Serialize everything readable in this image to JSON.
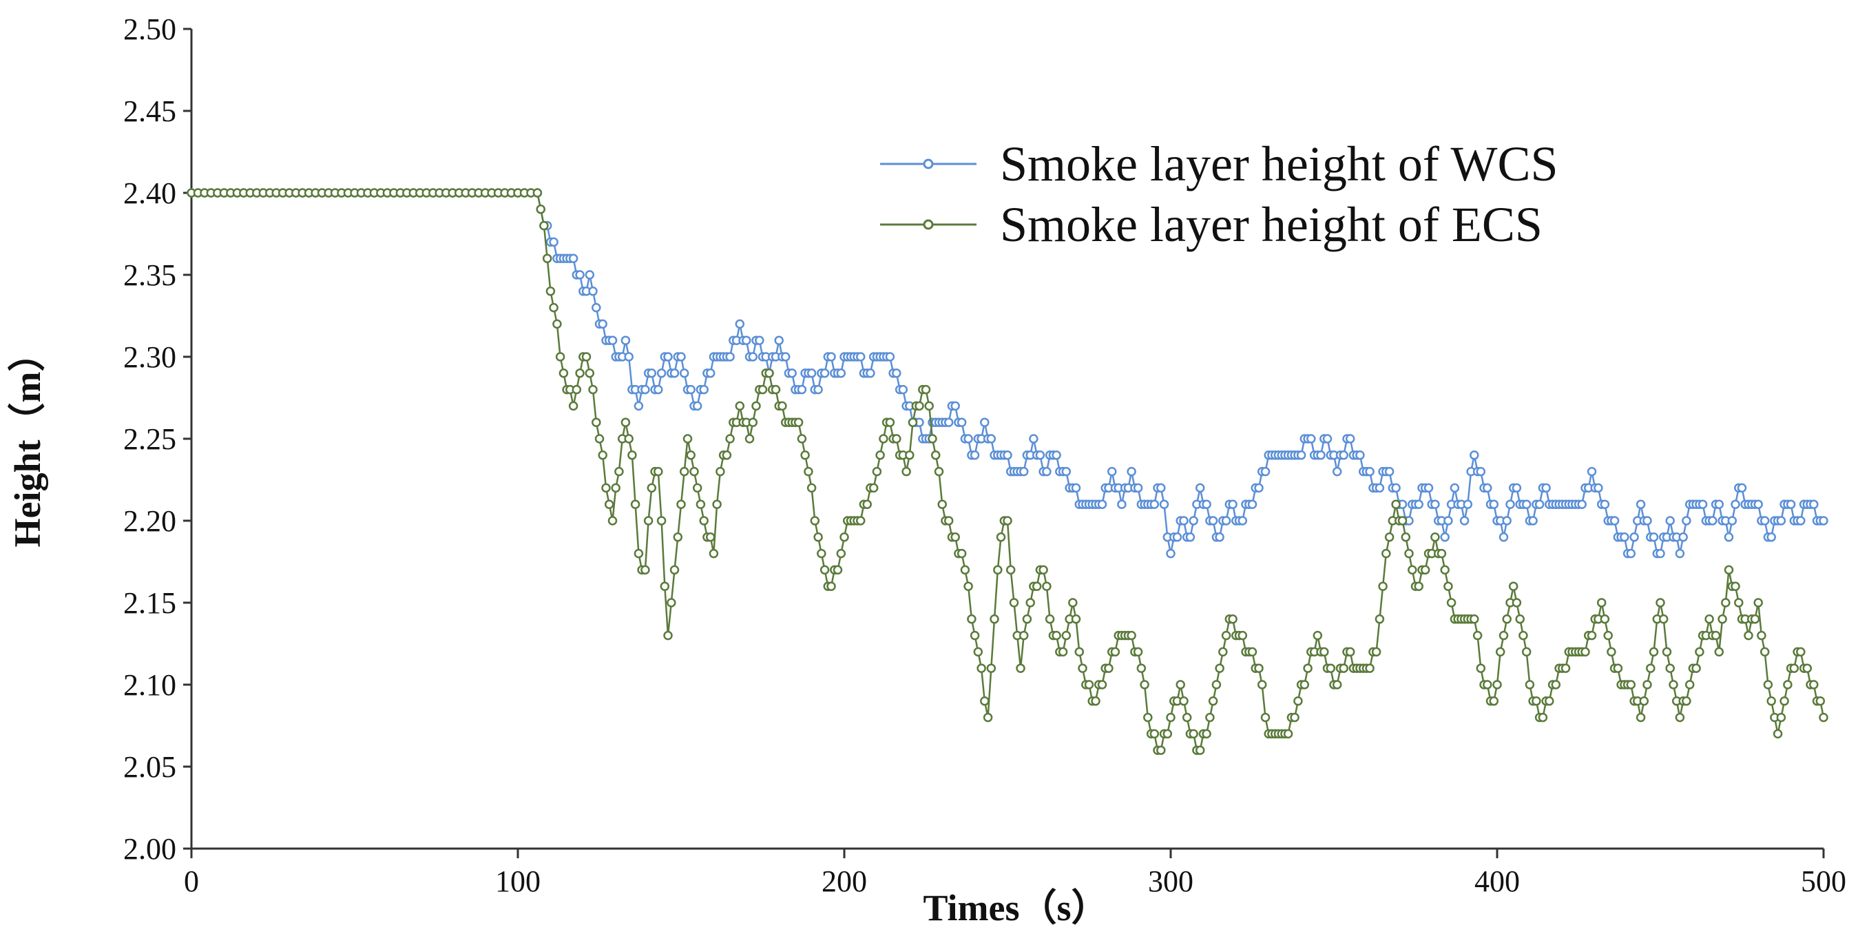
{
  "chart_data": {
    "type": "line",
    "title": "",
    "xlabel": "Times（s）",
    "ylabel": "Height（m）",
    "xlim": [
      0,
      500
    ],
    "ylim": [
      2.0,
      2.5
    ],
    "x_ticks": [
      "0",
      "100",
      "200",
      "300",
      "400",
      "500"
    ],
    "y_ticks": [
      "2.00",
      "2.05",
      "2.10",
      "2.15",
      "2.20",
      "2.25",
      "2.30",
      "2.35",
      "2.40",
      "2.45",
      "2.50"
    ],
    "grid": false,
    "legend_position": "top-right",
    "series": [
      {
        "name": "Smoke layer height of WCS",
        "color": "#5b8fd6",
        "marker": "circle",
        "points": [
          [
            0,
            2.4
          ],
          [
            105,
            2.4
          ],
          [
            107,
            2.39
          ],
          [
            110,
            2.37
          ],
          [
            113,
            2.36
          ],
          [
            117,
            2.36
          ],
          [
            120,
            2.34
          ],
          [
            122,
            2.35
          ],
          [
            125,
            2.32
          ],
          [
            128,
            2.31
          ],
          [
            131,
            2.3
          ],
          [
            133,
            2.31
          ],
          [
            135,
            2.28
          ],
          [
            137,
            2.27
          ],
          [
            140,
            2.29
          ],
          [
            143,
            2.28
          ],
          [
            145,
            2.3
          ],
          [
            148,
            2.29
          ],
          [
            150,
            2.3
          ],
          [
            152,
            2.28
          ],
          [
            155,
            2.27
          ],
          [
            158,
            2.29
          ],
          [
            161,
            2.3
          ],
          [
            165,
            2.3
          ],
          [
            168,
            2.32
          ],
          [
            171,
            2.3
          ],
          [
            174,
            2.31
          ],
          [
            177,
            2.29
          ],
          [
            180,
            2.31
          ],
          [
            183,
            2.29
          ],
          [
            186,
            2.28
          ],
          [
            189,
            2.29
          ],
          [
            192,
            2.28
          ],
          [
            195,
            2.3
          ],
          [
            198,
            2.29
          ],
          [
            201,
            2.3
          ],
          [
            204,
            2.3
          ],
          [
            207,
            2.29
          ],
          [
            210,
            2.3
          ],
          [
            213,
            2.3
          ],
          [
            216,
            2.29
          ],
          [
            219,
            2.27
          ],
          [
            222,
            2.26
          ],
          [
            225,
            2.25
          ],
          [
            228,
            2.26
          ],
          [
            231,
            2.26
          ],
          [
            234,
            2.27
          ],
          [
            237,
            2.25
          ],
          [
            240,
            2.24
          ],
          [
            243,
            2.26
          ],
          [
            246,
            2.24
          ],
          [
            249,
            2.24
          ],
          [
            252,
            2.23
          ],
          [
            255,
            2.23
          ],
          [
            258,
            2.25
          ],
          [
            261,
            2.23
          ],
          [
            264,
            2.24
          ],
          [
            267,
            2.23
          ],
          [
            270,
            2.22
          ],
          [
            273,
            2.21
          ],
          [
            276,
            2.21
          ],
          [
            279,
            2.21
          ],
          [
            282,
            2.23
          ],
          [
            285,
            2.21
          ],
          [
            288,
            2.23
          ],
          [
            291,
            2.21
          ],
          [
            294,
            2.21
          ],
          [
            297,
            2.22
          ],
          [
            300,
            2.18
          ],
          [
            303,
            2.2
          ],
          [
            306,
            2.19
          ],
          [
            309,
            2.22
          ],
          [
            312,
            2.2
          ],
          [
            315,
            2.19
          ],
          [
            318,
            2.21
          ],
          [
            321,
            2.2
          ],
          [
            324,
            2.21
          ],
          [
            327,
            2.22
          ],
          [
            330,
            2.24
          ],
          [
            333,
            2.24
          ],
          [
            336,
            2.24
          ],
          [
            339,
            2.24
          ],
          [
            342,
            2.25
          ],
          [
            345,
            2.24
          ],
          [
            348,
            2.25
          ],
          [
            351,
            2.23
          ],
          [
            354,
            2.25
          ],
          [
            357,
            2.24
          ],
          [
            360,
            2.23
          ],
          [
            363,
            2.22
          ],
          [
            366,
            2.23
          ],
          [
            369,
            2.22
          ],
          [
            372,
            2.2
          ],
          [
            375,
            2.21
          ],
          [
            378,
            2.22
          ],
          [
            381,
            2.21
          ],
          [
            384,
            2.19
          ],
          [
            387,
            2.22
          ],
          [
            390,
            2.2
          ],
          [
            393,
            2.24
          ],
          [
            396,
            2.22
          ],
          [
            399,
            2.21
          ],
          [
            402,
            2.19
          ],
          [
            405,
            2.22
          ],
          [
            408,
            2.21
          ],
          [
            411,
            2.2
          ],
          [
            414,
            2.22
          ],
          [
            417,
            2.21
          ],
          [
            420,
            2.21
          ],
          [
            423,
            2.21
          ],
          [
            426,
            2.21
          ],
          [
            429,
            2.23
          ],
          [
            432,
            2.21
          ],
          [
            435,
            2.2
          ],
          [
            438,
            2.19
          ],
          [
            441,
            2.18
          ],
          [
            444,
            2.21
          ],
          [
            447,
            2.19
          ],
          [
            450,
            2.18
          ],
          [
            453,
            2.2
          ],
          [
            456,
            2.18
          ],
          [
            459,
            2.21
          ],
          [
            462,
            2.21
          ],
          [
            465,
            2.2
          ],
          [
            468,
            2.21
          ],
          [
            471,
            2.19
          ],
          [
            474,
            2.22
          ],
          [
            477,
            2.21
          ],
          [
            480,
            2.21
          ],
          [
            483,
            2.19
          ],
          [
            486,
            2.2
          ],
          [
            489,
            2.21
          ],
          [
            492,
            2.2
          ],
          [
            495,
            2.21
          ],
          [
            500,
            2.2
          ]
        ]
      },
      {
        "name": "Smoke layer height of ECS",
        "color": "#5a7a3a",
        "marker": "circle",
        "points": [
          [
            0,
            2.4
          ],
          [
            105,
            2.4
          ],
          [
            107,
            2.39
          ],
          [
            109,
            2.36
          ],
          [
            111,
            2.33
          ],
          [
            113,
            2.3
          ],
          [
            115,
            2.28
          ],
          [
            117,
            2.27
          ],
          [
            119,
            2.29
          ],
          [
            121,
            2.3
          ],
          [
            123,
            2.28
          ],
          [
            125,
            2.25
          ],
          [
            127,
            2.22
          ],
          [
            129,
            2.2
          ],
          [
            131,
            2.23
          ],
          [
            133,
            2.26
          ],
          [
            135,
            2.24
          ],
          [
            137,
            2.18
          ],
          [
            139,
            2.17
          ],
          [
            141,
            2.22
          ],
          [
            143,
            2.23
          ],
          [
            145,
            2.16
          ],
          [
            146,
            2.13
          ],
          [
            148,
            2.17
          ],
          [
            150,
            2.21
          ],
          [
            152,
            2.25
          ],
          [
            154,
            2.23
          ],
          [
            156,
            2.21
          ],
          [
            158,
            2.19
          ],
          [
            160,
            2.18
          ],
          [
            162,
            2.23
          ],
          [
            165,
            2.25
          ],
          [
            168,
            2.27
          ],
          [
            171,
            2.25
          ],
          [
            174,
            2.28
          ],
          [
            177,
            2.29
          ],
          [
            180,
            2.27
          ],
          [
            183,
            2.26
          ],
          [
            186,
            2.26
          ],
          [
            189,
            2.23
          ],
          [
            192,
            2.19
          ],
          [
            195,
            2.16
          ],
          [
            198,
            2.17
          ],
          [
            201,
            2.2
          ],
          [
            204,
            2.2
          ],
          [
            207,
            2.21
          ],
          [
            210,
            2.23
          ],
          [
            213,
            2.26
          ],
          [
            216,
            2.25
          ],
          [
            219,
            2.23
          ],
          [
            222,
            2.27
          ],
          [
            225,
            2.28
          ],
          [
            228,
            2.24
          ],
          [
            231,
            2.2
          ],
          [
            234,
            2.19
          ],
          [
            237,
            2.17
          ],
          [
            240,
            2.13
          ],
          [
            242,
            2.11
          ],
          [
            244,
            2.08
          ],
          [
            246,
            2.14
          ],
          [
            248,
            2.19
          ],
          [
            250,
            2.2
          ],
          [
            252,
            2.15
          ],
          [
            254,
            2.11
          ],
          [
            256,
            2.14
          ],
          [
            258,
            2.16
          ],
          [
            261,
            2.17
          ],
          [
            264,
            2.13
          ],
          [
            267,
            2.12
          ],
          [
            270,
            2.15
          ],
          [
            273,
            2.11
          ],
          [
            276,
            2.09
          ],
          [
            279,
            2.1
          ],
          [
            282,
            2.12
          ],
          [
            285,
            2.13
          ],
          [
            288,
            2.13
          ],
          [
            291,
            2.11
          ],
          [
            294,
            2.07
          ],
          [
            297,
            2.06
          ],
          [
            300,
            2.08
          ],
          [
            303,
            2.1
          ],
          [
            306,
            2.07
          ],
          [
            309,
            2.06
          ],
          [
            312,
            2.08
          ],
          [
            315,
            2.11
          ],
          [
            318,
            2.14
          ],
          [
            321,
            2.13
          ],
          [
            324,
            2.12
          ],
          [
            327,
            2.11
          ],
          [
            330,
            2.07
          ],
          [
            333,
            2.07
          ],
          [
            336,
            2.07
          ],
          [
            339,
            2.09
          ],
          [
            342,
            2.11
          ],
          [
            345,
            2.13
          ],
          [
            348,
            2.11
          ],
          [
            351,
            2.1
          ],
          [
            354,
            2.12
          ],
          [
            357,
            2.11
          ],
          [
            360,
            2.11
          ],
          [
            363,
            2.12
          ],
          [
            366,
            2.18
          ],
          [
            369,
            2.21
          ],
          [
            372,
            2.19
          ],
          [
            375,
            2.16
          ],
          [
            378,
            2.17
          ],
          [
            381,
            2.19
          ],
          [
            384,
            2.17
          ],
          [
            387,
            2.14
          ],
          [
            390,
            2.14
          ],
          [
            393,
            2.14
          ],
          [
            396,
            2.1
          ],
          [
            399,
            2.09
          ],
          [
            402,
            2.13
          ],
          [
            405,
            2.16
          ],
          [
            408,
            2.13
          ],
          [
            411,
            2.09
          ],
          [
            414,
            2.08
          ],
          [
            417,
            2.1
          ],
          [
            420,
            2.11
          ],
          [
            423,
            2.12
          ],
          [
            426,
            2.12
          ],
          [
            429,
            2.13
          ],
          [
            432,
            2.15
          ],
          [
            435,
            2.12
          ],
          [
            438,
            2.1
          ],
          [
            441,
            2.1
          ],
          [
            444,
            2.08
          ],
          [
            447,
            2.11
          ],
          [
            450,
            2.15
          ],
          [
            453,
            2.11
          ],
          [
            456,
            2.08
          ],
          [
            459,
            2.1
          ],
          [
            462,
            2.12
          ],
          [
            465,
            2.14
          ],
          [
            468,
            2.12
          ],
          [
            471,
            2.17
          ],
          [
            474,
            2.15
          ],
          [
            477,
            2.13
          ],
          [
            480,
            2.15
          ],
          [
            483,
            2.1
          ],
          [
            486,
            2.07
          ],
          [
            489,
            2.1
          ],
          [
            492,
            2.12
          ],
          [
            495,
            2.11
          ],
          [
            498,
            2.09
          ],
          [
            500,
            2.08
          ]
        ]
      }
    ]
  }
}
